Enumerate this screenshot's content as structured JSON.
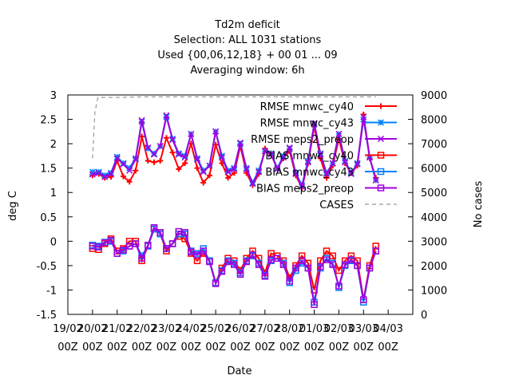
{
  "chart_data": {
    "type": "line",
    "title_lines": [
      "Td2m deficit",
      "Selection: ALL    1031 stations",
      "Used {00,06,12,18} + 00 01 ... 09",
      "Averaging window:  6h"
    ],
    "xlabel": "Date",
    "ylabel": "deg C",
    "y2label": "No cases",
    "ylim": [
      -1.5,
      3
    ],
    "y2lim": [
      0,
      9000
    ],
    "yticks": [
      "-1.5",
      "-1",
      "-0.5",
      "0",
      "0.5",
      "1",
      "1.5",
      "2",
      "2.5",
      "3"
    ],
    "y2ticks": [
      "0",
      "1000",
      "2000",
      "3000",
      "4000",
      "5000",
      "6000",
      "7000",
      "8000",
      "9000"
    ],
    "xlim": [
      0,
      14
    ],
    "xticks": [
      {
        "top": "19/02",
        "bottom": "00Z"
      },
      {
        "top": "20/02",
        "bottom": "00Z"
      },
      {
        "top": "21/02",
        "bottom": "00Z"
      },
      {
        "top": "22/02",
        "bottom": "00Z"
      },
      {
        "top": "23/02",
        "bottom": "00Z"
      },
      {
        "top": "24/02",
        "bottom": "00Z"
      },
      {
        "top": "25/02",
        "bottom": "00Z"
      },
      {
        "top": "26/02",
        "bottom": "00Z"
      },
      {
        "top": "27/02",
        "bottom": "00Z"
      },
      {
        "top": "28/02",
        "bottom": "00Z"
      },
      {
        "top": "01/03",
        "bottom": "00Z"
      },
      {
        "top": "02/03",
        "bottom": "00Z"
      },
      {
        "top": "03/03",
        "bottom": "00Z"
      },
      {
        "top": "04/03",
        "bottom": "00Z"
      }
    ],
    "legend_position": "top-right",
    "x": [
      1,
      1.25,
      1.5,
      1.75,
      2,
      2.25,
      2.5,
      2.75,
      3,
      3.25,
      3.5,
      3.75,
      4,
      4.25,
      4.5,
      4.75,
      5,
      5.25,
      5.5,
      5.75,
      6,
      6.25,
      6.5,
      6.75,
      7,
      7.25,
      7.5,
      7.75,
      8,
      8.25,
      8.5,
      8.75,
      9,
      9.25,
      9.5,
      9.75,
      10,
      10.25,
      10.5,
      10.75,
      11,
      11.25,
      11.5,
      11.75,
      12,
      12.25,
      12.5
    ],
    "series": [
      {
        "name": "RMSE mnwc_cy40",
        "color": "#ff0000",
        "marker": "plus",
        "axis": "y",
        "values": [
          1.35,
          1.38,
          1.3,
          1.32,
          1.65,
          1.33,
          1.22,
          1.45,
          2.15,
          1.65,
          1.62,
          1.65,
          2.12,
          1.82,
          1.48,
          1.6,
          2.0,
          1.5,
          1.2,
          1.35,
          1.98,
          1.6,
          1.3,
          1.4,
          1.95,
          1.4,
          1.15,
          1.38,
          1.9,
          1.8,
          1.5,
          1.7,
          1.85,
          1.35,
          1.1,
          1.6,
          2.35,
          1.7,
          1.3,
          1.55,
          2.1,
          1.6,
          1.4,
          1.55,
          2.6,
          1.7,
          1.3
        ]
      },
      {
        "name": "RMSE mnwc_cy43",
        "color": "#0080ff",
        "marker": "star",
        "axis": "y",
        "values": [
          1.42,
          1.42,
          1.35,
          1.4,
          1.73,
          1.6,
          1.5,
          1.7,
          2.45,
          1.9,
          1.8,
          1.95,
          2.55,
          2.1,
          1.8,
          1.75,
          2.2,
          1.7,
          1.45,
          1.55,
          2.25,
          1.75,
          1.45,
          1.5,
          2.0,
          1.5,
          1.2,
          1.45,
          1.85,
          1.8,
          1.5,
          1.75,
          1.9,
          1.4,
          1.15,
          1.65,
          2.4,
          1.8,
          1.4,
          1.6,
          2.2,
          1.65,
          1.4,
          1.6,
          2.5,
          1.72,
          1.25
        ]
      },
      {
        "name": "RMSE meps2_preop",
        "color": "#a000e0",
        "marker": "cross",
        "axis": "y",
        "values": [
          1.37,
          1.4,
          1.32,
          1.38,
          1.7,
          1.58,
          1.45,
          1.68,
          2.48,
          1.92,
          1.78,
          1.95,
          2.58,
          2.08,
          1.78,
          1.72,
          2.2,
          1.68,
          1.42,
          1.55,
          2.25,
          1.72,
          1.42,
          1.48,
          2.02,
          1.48,
          1.18,
          1.42,
          1.85,
          1.78,
          1.48,
          1.72,
          1.92,
          1.38,
          1.12,
          1.62,
          2.42,
          1.78,
          1.38,
          1.6,
          2.2,
          1.62,
          1.38,
          1.58,
          2.55,
          1.72,
          1.25
        ]
      },
      {
        "name": "BIAS mnwc_cy40",
        "color": "#ff0000",
        "marker": "square",
        "axis": "y",
        "values": [
          -0.15,
          -0.17,
          -0.05,
          0.05,
          -0.2,
          -0.15,
          0.0,
          0.0,
          -0.4,
          -0.1,
          0.25,
          0.15,
          -0.2,
          -0.05,
          0.1,
          0.05,
          -0.25,
          -0.4,
          -0.25,
          -0.4,
          -0.85,
          -0.55,
          -0.35,
          -0.4,
          -0.6,
          -0.35,
          -0.2,
          -0.35,
          -0.65,
          -0.25,
          -0.3,
          -0.4,
          -0.75,
          -0.5,
          -0.3,
          -0.45,
          -1.0,
          -0.4,
          -0.2,
          -0.3,
          -0.6,
          -0.4,
          -0.3,
          -0.4,
          -1.2,
          -0.5,
          -0.1
        ]
      },
      {
        "name": "BIAS mnwc_cy43",
        "color": "#0080ff",
        "marker": "square",
        "axis": "y",
        "values": [
          -0.08,
          -0.1,
          -0.02,
          0.0,
          -0.25,
          -0.2,
          -0.1,
          -0.05,
          -0.3,
          -0.1,
          0.25,
          0.15,
          -0.15,
          -0.05,
          0.15,
          0.15,
          -0.2,
          -0.25,
          -0.15,
          -0.4,
          -0.85,
          -0.6,
          -0.4,
          -0.45,
          -0.65,
          -0.4,
          -0.3,
          -0.45,
          -0.7,
          -0.4,
          -0.35,
          -0.45,
          -0.85,
          -0.6,
          -0.45,
          -0.55,
          -1.25,
          -0.55,
          -0.35,
          -0.45,
          -0.95,
          -0.5,
          -0.4,
          -0.5,
          -1.25,
          -0.55,
          -0.2
        ]
      },
      {
        "name": "BIAS meps2_preop",
        "color": "#a000e0",
        "marker": "square",
        "axis": "y",
        "values": [
          -0.1,
          -0.12,
          -0.03,
          0.02,
          -0.25,
          -0.18,
          -0.1,
          -0.05,
          -0.35,
          -0.08,
          0.28,
          0.18,
          -0.15,
          -0.05,
          0.2,
          0.18,
          -0.22,
          -0.28,
          -0.2,
          -0.42,
          -0.87,
          -0.62,
          -0.42,
          -0.48,
          -0.68,
          -0.42,
          -0.28,
          -0.48,
          -0.72,
          -0.38,
          -0.35,
          -0.48,
          -0.82,
          -0.55,
          -0.4,
          -0.55,
          -1.3,
          -0.52,
          -0.38,
          -0.48,
          -0.92,
          -0.48,
          -0.38,
          -0.5,
          -1.2,
          -0.55,
          -0.2
        ]
      },
      {
        "name": "CASES",
        "color": "#999999",
        "marker": "none",
        "dash": true,
        "axis": "y2",
        "x": [
          1,
          1.1,
          1.22,
          2,
          3,
          4,
          5,
          6,
          7,
          8,
          9,
          10,
          11,
          12,
          12.5
        ],
        "values": [
          6400,
          8300,
          8900,
          8900,
          8920,
          8920,
          8920,
          8920,
          8920,
          8920,
          8920,
          8920,
          8920,
          8920,
          8920
        ]
      }
    ]
  }
}
